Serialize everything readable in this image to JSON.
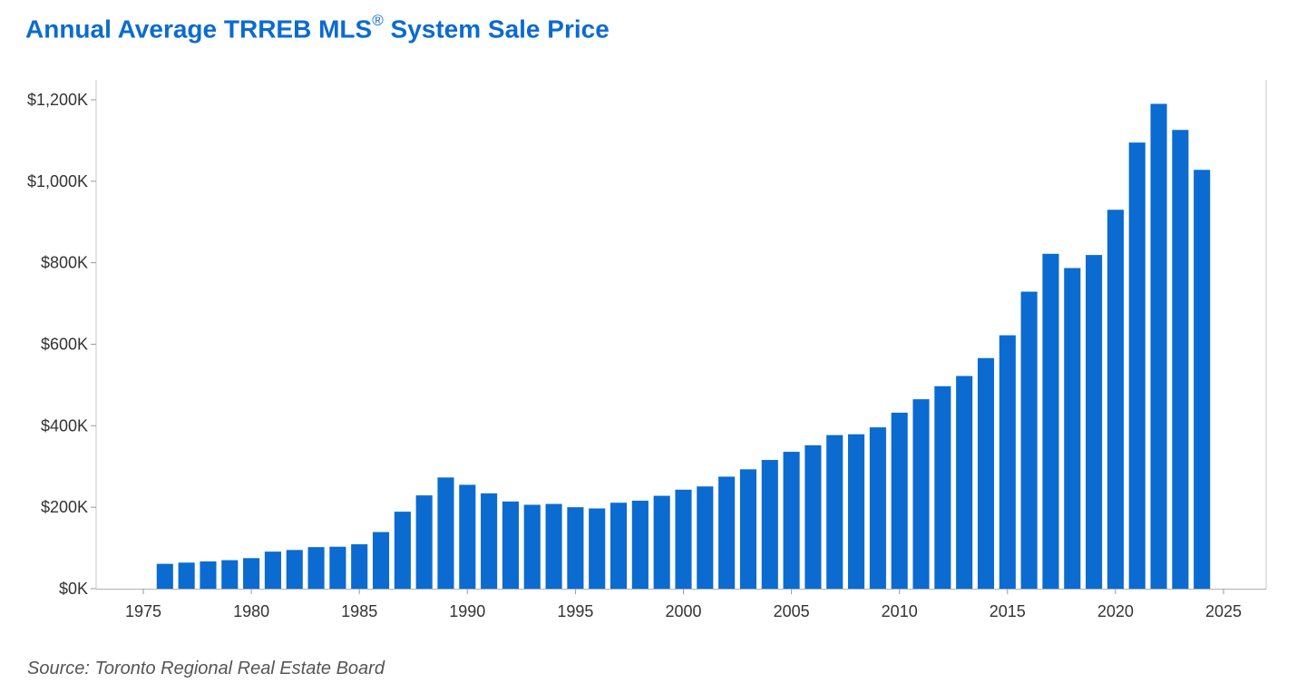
{
  "chart_data": {
    "type": "bar",
    "title": "Annual Average TRREB MLS",
    "title_mark": "®",
    "title_suffix": " System Sale Price",
    "xlabel": "",
    "ylabel": "",
    "x_tick_labels": [
      "1975",
      "1980",
      "1985",
      "1990",
      "1995",
      "2000",
      "2005",
      "2010",
      "2015",
      "2020",
      "2025"
    ],
    "y_tick_labels": [
      "$0K",
      "$200K",
      "$400K",
      "$600K",
      "$800K",
      "$1,000K",
      "$1,200K"
    ],
    "y_tick_values": [
      0,
      200,
      400,
      600,
      800,
      1000,
      1200
    ],
    "xlim": [
      1974,
      2027
    ],
    "ylim": [
      0,
      1200
    ],
    "units": "thousands of dollars",
    "grid": false,
    "bar_color": "#0b6bd0",
    "categories": [
      1976,
      1977,
      1978,
      1979,
      1980,
      1981,
      1982,
      1983,
      1984,
      1985,
      1986,
      1987,
      1988,
      1989,
      1990,
      1991,
      1992,
      1993,
      1994,
      1995,
      1996,
      1997,
      1998,
      1999,
      2000,
      2001,
      2002,
      2003,
      2004,
      2005,
      2006,
      2007,
      2008,
      2009,
      2010,
      2011,
      2012,
      2013,
      2014,
      2015,
      2016,
      2017,
      2018,
      2019,
      2020,
      2021,
      2022,
      2023,
      2024
    ],
    "values": [
      61,
      64,
      67,
      70,
      75,
      91,
      95,
      102,
      103,
      109,
      139,
      189,
      229,
      273,
      255,
      234,
      214,
      206,
      208,
      200,
      197,
      211,
      216,
      228,
      243,
      251,
      275,
      293,
      316,
      336,
      352,
      377,
      379,
      396,
      432,
      465,
      497,
      522,
      566,
      622,
      729,
      822,
      787,
      819,
      930,
      1095,
      1190,
      1126,
      1028
    ]
  },
  "source": "Source: Toronto Regional Real Estate Board"
}
